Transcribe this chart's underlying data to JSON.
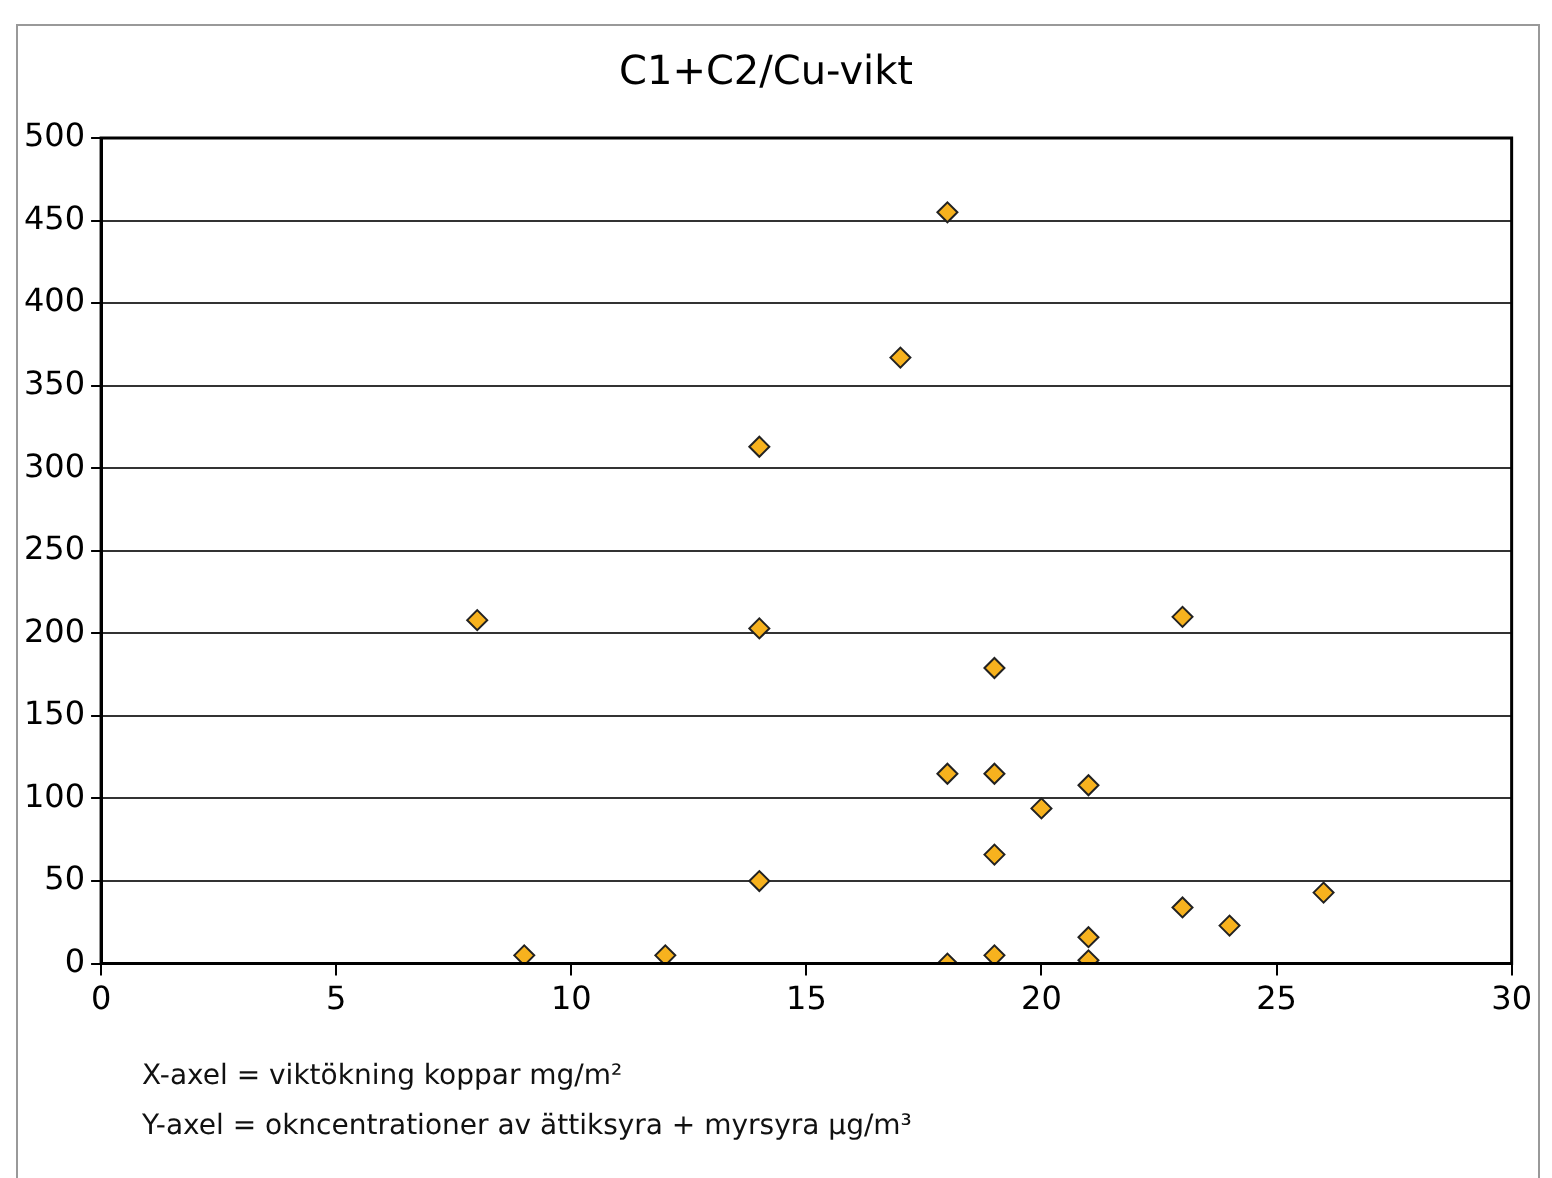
{
  "chart_data": {
    "type": "scatter",
    "title": "C1+C2/Cu-vikt",
    "x": [
      8,
      9,
      12,
      14,
      14,
      14,
      17,
      18,
      18,
      18,
      19,
      19,
      19,
      19,
      20,
      21,
      21,
      21,
      23,
      23,
      24,
      26
    ],
    "values": [
      208,
      5,
      5,
      313,
      203,
      50,
      367,
      455,
      115,
      0,
      179,
      115,
      66,
      5,
      94,
      108,
      16,
      2,
      210,
      34,
      23,
      43
    ],
    "color": "#f7b21e",
    "xlim": [
      0,
      30
    ],
    "xticks": [
      0,
      5,
      10,
      15,
      20,
      25,
      30
    ],
    "ylim": [
      0,
      500
    ],
    "yticks": [
      0,
      50,
      100,
      150,
      200,
      250,
      300,
      350,
      400,
      450,
      500
    ],
    "grid": "y",
    "marker": "diamond",
    "legend": false,
    "annotations": [
      "X-axel = viktökning koppar mg/m²",
      "Y-axel = okncentrationer av ättiksyra + myrsyra µg/m³"
    ]
  }
}
